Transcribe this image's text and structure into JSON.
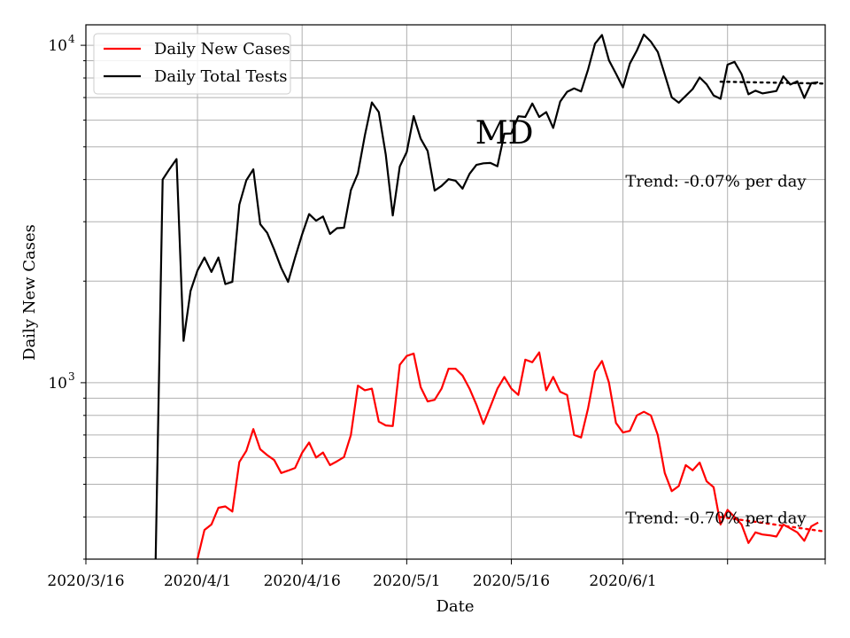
{
  "chart_data": {
    "type": "line",
    "title": "MD",
    "xlabel": "Date",
    "ylabel": "Daily New Cases",
    "yscale": "log",
    "ylim": [
      300,
      11500
    ],
    "xlim_days": [
      0,
      106
    ],
    "grid": true,
    "legend_position": "top-left",
    "x_start_date": "2020/3/16",
    "x_ticks": [
      {
        "day": 0,
        "label": "2020/3/16"
      },
      {
        "day": 16,
        "label": "2020/4/1"
      },
      {
        "day": 31,
        "label": "2020/4/16"
      },
      {
        "day": 46,
        "label": "2020/5/1"
      },
      {
        "day": 61,
        "label": "2020/5/16"
      },
      {
        "day": 77,
        "label": "2020/6/1"
      },
      {
        "day": 92,
        "label": ""
      },
      {
        "day": 106,
        "label": ""
      }
    ],
    "y_major_ticks": [
      {
        "value": 1000,
        "label_base": "10",
        "label_exp": "3"
      },
      {
        "value": 10000,
        "label_base": "10",
        "label_exp": "4"
      }
    ],
    "y_minor_ticks": [
      300,
      400,
      500,
      600,
      700,
      800,
      900,
      2000,
      3000,
      4000,
      5000,
      6000,
      7000,
      8000,
      9000
    ],
    "series": [
      {
        "name": "Daily New Cases",
        "color": "#ff0000",
        "start_day": 16,
        "values": [
          300,
          366,
          380,
          426,
          430,
          415,
          582,
          628,
          729,
          635,
          610,
          590,
          540,
          549,
          559,
          620,
          665,
          600,
          621,
          570,
          585,
          602,
          700,
          980,
          950,
          960,
          767,
          747,
          744,
          1130,
          1200,
          1220,
          970,
          880,
          890,
          960,
          1100,
          1100,
          1050,
          960,
          860,
          755,
          850,
          960,
          1040,
          960,
          920,
          1170,
          1150,
          1230,
          950,
          1040,
          940,
          920,
          700,
          688,
          840,
          1080,
          1160,
          1000,
          760,
          712,
          720,
          800,
          820,
          800,
          700,
          540,
          477,
          494,
          570,
          550,
          580,
          510,
          490,
          380,
          420,
          400,
          380,
          335,
          360,
          355,
          353,
          350,
          380,
          370,
          360,
          340,
          375,
          385
        ]
      },
      {
        "name": "Daily Total Tests",
        "color": "#000000",
        "start_day": 10,
        "values": [
          300,
          4000,
          4300,
          4600,
          1330,
          1870,
          2150,
          2350,
          2130,
          2350,
          1960,
          1990,
          3370,
          3980,
          4290,
          2950,
          2780,
          2480,
          2190,
          1990,
          2350,
          2750,
          3160,
          3020,
          3110,
          2760,
          2870,
          2880,
          3720,
          4170,
          5410,
          6770,
          6340,
          4740,
          3130,
          4370,
          4830,
          6170,
          5290,
          4860,
          3710,
          3830,
          4010,
          3970,
          3760,
          4160,
          4420,
          4470,
          4480,
          4380,
          5470,
          5480,
          6160,
          6130,
          6720,
          6130,
          6340,
          5690,
          6810,
          7280,
          7450,
          7300,
          8480,
          10110,
          10730,
          9020,
          8240,
          7500,
          8830,
          9650,
          10760,
          10250,
          9560,
          8190,
          7010,
          6760,
          7080,
          7420,
          8030,
          7660,
          7100,
          6940,
          8760,
          8930,
          8220,
          7160,
          7340,
          7200,
          7260,
          7320,
          8090,
          7650,
          7820,
          6980,
          7720,
          7770
        ]
      }
    ],
    "trend_lines": [
      {
        "series": "Daily Total Tests",
        "start_day": 91,
        "end_day": 106,
        "start_value": 7800,
        "end_value": 7700
      },
      {
        "series": "Daily New Cases",
        "start_day": 91,
        "end_day": 106,
        "start_value": 400,
        "end_value": 362
      }
    ],
    "annotations": [
      {
        "text": "Trend: -0.07% per day",
        "day": 78,
        "value": 3950
      },
      {
        "text": "Trend: -0.70% per day",
        "day": 78,
        "value": 398
      },
      {
        "text": "MD",
        "day": 60,
        "value": 5500
      }
    ]
  }
}
